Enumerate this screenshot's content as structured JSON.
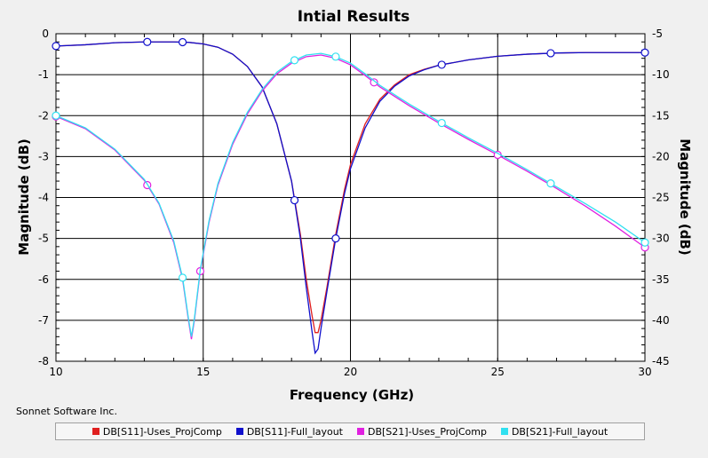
{
  "chart_data": {
    "type": "line",
    "title": "Intial Results",
    "xlabel": "Frequency (GHz)",
    "ylabel_left": "Magnitude (dB)",
    "ylabel_right": "Magnitude (dB)",
    "xlim": [
      10,
      30
    ],
    "ylim_left": [
      -8,
      0
    ],
    "ylim_right": [
      -45,
      -5
    ],
    "x_ticks": [
      "10",
      "15",
      "20",
      "25",
      "30"
    ],
    "y_ticks_left": [
      "0",
      "-1",
      "-2",
      "-3",
      "-4",
      "-5",
      "-6",
      "-7",
      "-8"
    ],
    "y_ticks_right": [
      "-5",
      "-10",
      "-15",
      "-20",
      "-25",
      "-30",
      "-35",
      "-40",
      "-45"
    ],
    "grid": true,
    "legend_position": "bottom",
    "series": [
      {
        "name": "DB[S11]-Uses_ProjComp",
        "axis": "left",
        "color": "#e02020",
        "marker": "none",
        "points": [
          [
            10,
            -0.3
          ],
          [
            11,
            -0.27
          ],
          [
            12,
            -0.22
          ],
          [
            13,
            -0.2
          ],
          [
            14,
            -0.2
          ],
          [
            14.5,
            -0.21
          ],
          [
            15,
            -0.25
          ],
          [
            15.5,
            -0.33
          ],
          [
            16,
            -0.5
          ],
          [
            16.5,
            -0.8
          ],
          [
            17,
            -1.3
          ],
          [
            17.5,
            -2.2
          ],
          [
            18,
            -3.6
          ],
          [
            18.3,
            -4.9
          ],
          [
            18.5,
            -6.0
          ],
          [
            18.7,
            -6.9
          ],
          [
            18.8,
            -7.3
          ],
          [
            18.9,
            -7.3
          ],
          [
            19.0,
            -7.0
          ],
          [
            19.2,
            -6.2
          ],
          [
            19.5,
            -4.9
          ],
          [
            19.8,
            -3.8
          ],
          [
            20,
            -3.2
          ],
          [
            20.5,
            -2.2
          ],
          [
            21,
            -1.6
          ],
          [
            21.5,
            -1.25
          ],
          [
            22,
            -1.0
          ],
          [
            22.5,
            -0.87
          ],
          [
            23,
            -0.77
          ],
          [
            24,
            -0.64
          ],
          [
            25,
            -0.55
          ],
          [
            26,
            -0.5
          ],
          [
            27,
            -0.47
          ],
          [
            28,
            -0.46
          ],
          [
            29,
            -0.46
          ],
          [
            30,
            -0.46
          ]
        ]
      },
      {
        "name": "DB[S11]-Full_layout",
        "axis": "left",
        "color": "#1010cc",
        "marker": "circle",
        "marker_x": [
          10,
          13.1,
          14.3,
          18.1,
          19.5,
          23.1,
          26.8,
          30
        ],
        "points": [
          [
            10,
            -0.3
          ],
          [
            11,
            -0.27
          ],
          [
            12,
            -0.22
          ],
          [
            13,
            -0.2
          ],
          [
            14,
            -0.2
          ],
          [
            14.5,
            -0.21
          ],
          [
            15,
            -0.25
          ],
          [
            15.5,
            -0.33
          ],
          [
            16,
            -0.5
          ],
          [
            16.5,
            -0.8
          ],
          [
            17,
            -1.3
          ],
          [
            17.5,
            -2.2
          ],
          [
            18,
            -3.6
          ],
          [
            18.3,
            -5.0
          ],
          [
            18.5,
            -6.2
          ],
          [
            18.7,
            -7.3
          ],
          [
            18.8,
            -7.8
          ],
          [
            18.9,
            -7.7
          ],
          [
            19.0,
            -7.2
          ],
          [
            19.2,
            -6.3
          ],
          [
            19.5,
            -5.0
          ],
          [
            19.8,
            -3.9
          ],
          [
            20,
            -3.3
          ],
          [
            20.5,
            -2.3
          ],
          [
            21,
            -1.65
          ],
          [
            21.5,
            -1.28
          ],
          [
            22,
            -1.03
          ],
          [
            22.5,
            -0.88
          ],
          [
            23,
            -0.77
          ],
          [
            24,
            -0.64
          ],
          [
            25,
            -0.55
          ],
          [
            26,
            -0.5
          ],
          [
            27,
            -0.47
          ],
          [
            28,
            -0.46
          ],
          [
            29,
            -0.46
          ],
          [
            30,
            -0.46
          ]
        ]
      },
      {
        "name": "DB[S21]-Uses_ProjComp",
        "axis": "right",
        "color": "#e020e0",
        "marker": "circle",
        "marker_x": [
          10,
          13.1,
          14.9,
          20.8,
          25,
          30
        ],
        "points": [
          [
            10,
            -15.1
          ],
          [
            11,
            -16.6
          ],
          [
            12,
            -19.2
          ],
          [
            13,
            -22.9
          ],
          [
            13.5,
            -25.8
          ],
          [
            14,
            -30.5
          ],
          [
            14.3,
            -35.0
          ],
          [
            14.5,
            -40.0
          ],
          [
            14.6,
            -42.3
          ],
          [
            14.7,
            -40.0
          ],
          [
            14.9,
            -34.0
          ],
          [
            15.2,
            -28.0
          ],
          [
            15.5,
            -23.5
          ],
          [
            16,
            -18.5
          ],
          [
            16.5,
            -14.8
          ],
          [
            17,
            -12.0
          ],
          [
            17.5,
            -9.9
          ],
          [
            18,
            -8.6
          ],
          [
            18.5,
            -7.8
          ],
          [
            19,
            -7.6
          ],
          [
            19.5,
            -8.0
          ],
          [
            20,
            -8.8
          ],
          [
            20.5,
            -10.1
          ],
          [
            21,
            -11.5
          ],
          [
            22,
            -13.8
          ],
          [
            23,
            -15.9
          ],
          [
            24,
            -17.9
          ],
          [
            25,
            -19.8
          ],
          [
            26,
            -21.8
          ],
          [
            27,
            -23.9
          ],
          [
            28,
            -26.1
          ],
          [
            29,
            -28.5
          ],
          [
            30,
            -31.1
          ]
        ]
      },
      {
        "name": "DB[S21]-Full_layout",
        "axis": "right",
        "color": "#30e0f0",
        "marker": "circle",
        "marker_x": [
          10,
          14.3,
          18.1,
          19.5,
          23.1,
          26.8,
          30
        ],
        "points": [
          [
            10,
            -15.0
          ],
          [
            11,
            -16.5
          ],
          [
            12,
            -19.1
          ],
          [
            13,
            -22.8
          ],
          [
            13.5,
            -25.7
          ],
          [
            14,
            -30.3
          ],
          [
            14.3,
            -34.8
          ],
          [
            14.5,
            -39.8
          ],
          [
            14.6,
            -42.0
          ],
          [
            14.7,
            -39.8
          ],
          [
            14.9,
            -33.8
          ],
          [
            15.2,
            -27.8
          ],
          [
            15.5,
            -23.3
          ],
          [
            16,
            -18.3
          ],
          [
            16.5,
            -14.6
          ],
          [
            17,
            -11.8
          ],
          [
            17.5,
            -9.7
          ],
          [
            18,
            -8.4
          ],
          [
            18.5,
            -7.6
          ],
          [
            19,
            -7.4
          ],
          [
            19.5,
            -7.8
          ],
          [
            20,
            -8.6
          ],
          [
            20.5,
            -9.9
          ],
          [
            21,
            -11.3
          ],
          [
            22,
            -13.6
          ],
          [
            23,
            -15.7
          ],
          [
            24,
            -17.7
          ],
          [
            25,
            -19.6
          ],
          [
            26,
            -21.6
          ],
          [
            27,
            -23.7
          ],
          [
            28,
            -25.8
          ],
          [
            29,
            -28.0
          ],
          [
            30,
            -30.5
          ]
        ]
      }
    ]
  },
  "footer": {
    "credit": "Sonnet Software Inc."
  },
  "legend": {
    "items": [
      {
        "label": "DB[S11]-Uses_ProjComp",
        "color": "#e02020"
      },
      {
        "label": "DB[S11]-Full_layout",
        "color": "#1010cc"
      },
      {
        "label": "DB[S21]-Uses_ProjComp",
        "color": "#e020e0"
      },
      {
        "label": "DB[S21]-Full_layout",
        "color": "#30e0f0"
      }
    ]
  }
}
